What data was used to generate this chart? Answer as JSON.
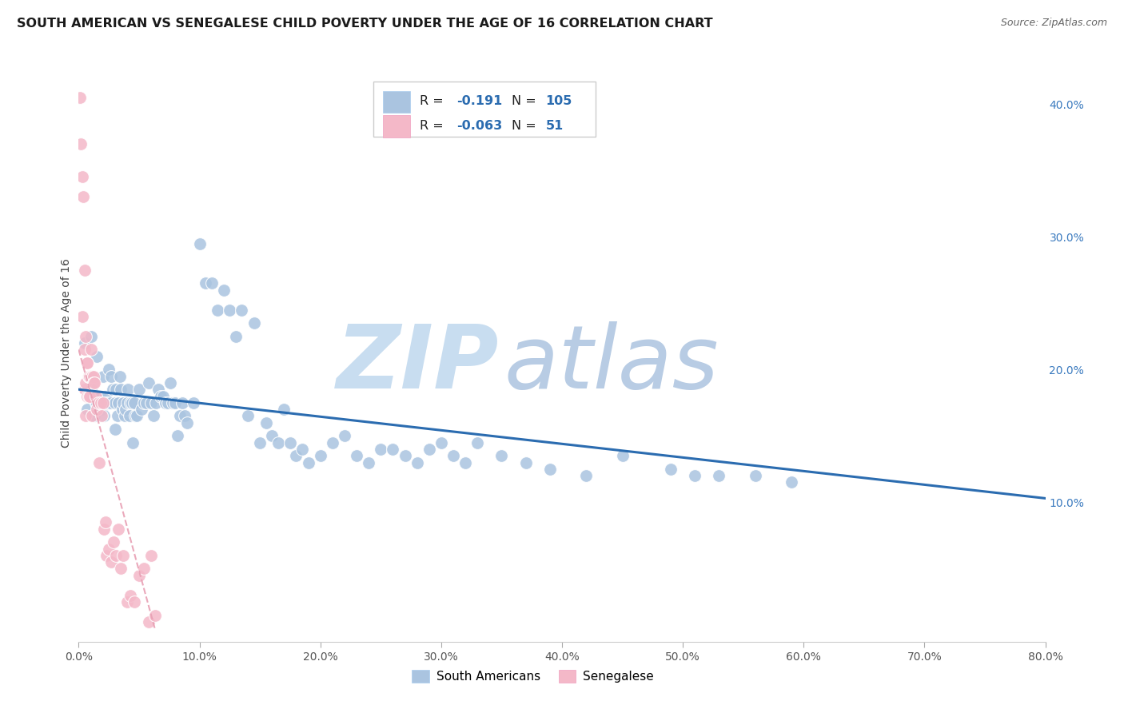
{
  "title": "SOUTH AMERICAN VS SENEGALESE CHILD POVERTY UNDER THE AGE OF 16 CORRELATION CHART",
  "source": "Source: ZipAtlas.com",
  "ylabel": "Child Poverty Under the Age of 16",
  "xlim": [
    0,
    0.8
  ],
  "ylim": [
    -0.005,
    0.43
  ],
  "xticks": [
    0.0,
    0.1,
    0.2,
    0.3,
    0.4,
    0.5,
    0.6,
    0.7,
    0.8
  ],
  "yticks_right": [
    0.1,
    0.2,
    0.3,
    0.4
  ],
  "ytick_labels_right": [
    "10.0%",
    "20.0%",
    "30.0%",
    "40.0%"
  ],
  "blue_R": "-0.191",
  "blue_N": "105",
  "pink_R": "-0.063",
  "pink_N": "51",
  "blue_color": "#aac4e0",
  "pink_color": "#f4b8c8",
  "blue_line_color": "#2b6cb0",
  "pink_line_color": "#e8a0b4",
  "watermark_zip": "ZIP",
  "watermark_atlas": "atlas",
  "watermark_color": "#d0e4f5",
  "legend_label_blue": "South Americans",
  "legend_label_pink": "Senegalese",
  "south_american_x": [
    0.005,
    0.007,
    0.008,
    0.01,
    0.01,
    0.012,
    0.013,
    0.014,
    0.015,
    0.015,
    0.018,
    0.019,
    0.02,
    0.021,
    0.022,
    0.023,
    0.025,
    0.026,
    0.027,
    0.028,
    0.03,
    0.03,
    0.031,
    0.032,
    0.033,
    0.034,
    0.035,
    0.036,
    0.037,
    0.038,
    0.039,
    0.04,
    0.041,
    0.042,
    0.043,
    0.044,
    0.045,
    0.046,
    0.047,
    0.048,
    0.05,
    0.052,
    0.054,
    0.056,
    0.058,
    0.06,
    0.062,
    0.064,
    0.066,
    0.068,
    0.07,
    0.072,
    0.074,
    0.076,
    0.078,
    0.08,
    0.082,
    0.084,
    0.086,
    0.088,
    0.09,
    0.095,
    0.1,
    0.105,
    0.11,
    0.115,
    0.12,
    0.125,
    0.13,
    0.135,
    0.14,
    0.145,
    0.15,
    0.155,
    0.16,
    0.165,
    0.17,
    0.175,
    0.18,
    0.185,
    0.19,
    0.2,
    0.21,
    0.22,
    0.23,
    0.24,
    0.25,
    0.26,
    0.27,
    0.28,
    0.29,
    0.3,
    0.31,
    0.32,
    0.33,
    0.35,
    0.37,
    0.39,
    0.42,
    0.45,
    0.49,
    0.51,
    0.53,
    0.56,
    0.59
  ],
  "south_american_y": [
    0.22,
    0.17,
    0.195,
    0.185,
    0.225,
    0.18,
    0.165,
    0.175,
    0.21,
    0.175,
    0.18,
    0.17,
    0.195,
    0.165,
    0.18,
    0.175,
    0.2,
    0.175,
    0.195,
    0.185,
    0.175,
    0.155,
    0.185,
    0.165,
    0.175,
    0.195,
    0.185,
    0.17,
    0.175,
    0.165,
    0.17,
    0.175,
    0.185,
    0.165,
    0.175,
    0.175,
    0.145,
    0.175,
    0.165,
    0.165,
    0.185,
    0.17,
    0.175,
    0.175,
    0.19,
    0.175,
    0.165,
    0.175,
    0.185,
    0.18,
    0.18,
    0.175,
    0.175,
    0.19,
    0.175,
    0.175,
    0.15,
    0.165,
    0.175,
    0.165,
    0.16,
    0.175,
    0.295,
    0.265,
    0.265,
    0.245,
    0.26,
    0.245,
    0.225,
    0.245,
    0.165,
    0.235,
    0.145,
    0.16,
    0.15,
    0.145,
    0.17,
    0.145,
    0.135,
    0.14,
    0.13,
    0.135,
    0.145,
    0.15,
    0.135,
    0.13,
    0.14,
    0.14,
    0.135,
    0.13,
    0.14,
    0.145,
    0.135,
    0.13,
    0.145,
    0.135,
    0.13,
    0.125,
    0.12,
    0.135,
    0.125,
    0.12,
    0.12,
    0.12,
    0.115
  ],
  "senegalese_x": [
    0.001,
    0.002,
    0.003,
    0.003,
    0.004,
    0.005,
    0.005,
    0.005,
    0.006,
    0.006,
    0.006,
    0.007,
    0.007,
    0.007,
    0.008,
    0.008,
    0.008,
    0.009,
    0.009,
    0.01,
    0.01,
    0.011,
    0.011,
    0.012,
    0.012,
    0.013,
    0.014,
    0.015,
    0.016,
    0.017,
    0.018,
    0.019,
    0.02,
    0.021,
    0.022,
    0.023,
    0.025,
    0.027,
    0.029,
    0.031,
    0.033,
    0.035,
    0.037,
    0.04,
    0.043,
    0.046,
    0.05,
    0.054,
    0.058,
    0.06,
    0.063
  ],
  "senegalese_y": [
    0.405,
    0.37,
    0.345,
    0.24,
    0.33,
    0.215,
    0.185,
    0.275,
    0.225,
    0.19,
    0.165,
    0.205,
    0.205,
    0.18,
    0.195,
    0.195,
    0.18,
    0.195,
    0.18,
    0.215,
    0.195,
    0.195,
    0.165,
    0.195,
    0.19,
    0.19,
    0.18,
    0.17,
    0.175,
    0.13,
    0.175,
    0.165,
    0.175,
    0.08,
    0.085,
    0.06,
    0.065,
    0.055,
    0.07,
    0.06,
    0.08,
    0.05,
    0.06,
    0.025,
    0.03,
    0.025,
    0.045,
    0.05,
    0.01,
    0.06,
    0.015
  ],
  "blue_line_x": [
    0.0,
    0.8
  ],
  "blue_line_y": [
    0.185,
    0.103
  ],
  "pink_line_x": [
    0.0,
    0.063
  ],
  "pink_line_y": [
    0.215,
    0.005
  ],
  "background_color": "#ffffff",
  "grid_color": "#e0e8f0",
  "title_fontsize": 11.5,
  "axis_label_fontsize": 10,
  "tick_fontsize": 10,
  "source_fontsize": 9
}
